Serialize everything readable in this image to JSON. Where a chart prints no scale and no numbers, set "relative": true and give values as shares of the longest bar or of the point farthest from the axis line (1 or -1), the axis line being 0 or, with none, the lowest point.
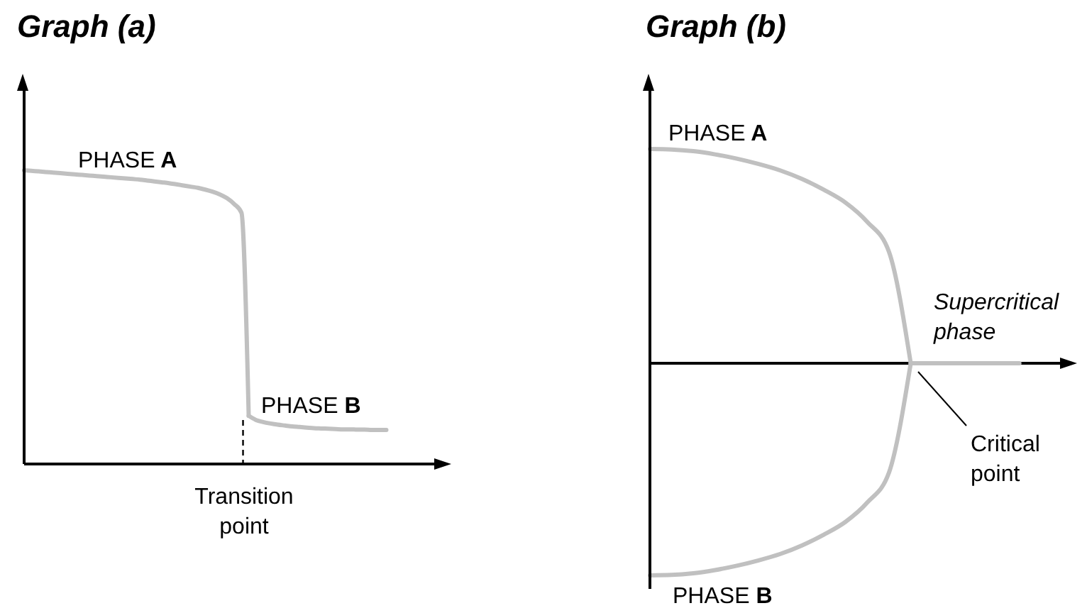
{
  "chart_data": [
    {
      "type": "line",
      "title": "Graph (a)",
      "relative": true,
      "categories": [
        null,
        null,
        null,
        null,
        null,
        null,
        null,
        null,
        null,
        null,
        null,
        null,
        null,
        null,
        null,
        null,
        null,
        null,
        null,
        null,
        null,
        null,
        null,
        null,
        null,
        null,
        null,
        null,
        null,
        null,
        null,
        null,
        null,
        null,
        null,
        null,
        null,
        null,
        null,
        null,
        null,
        null,
        null,
        null,
        null,
        null,
        null,
        null,
        null,
        null,
        null,
        null,
        null,
        null,
        null,
        null,
        null,
        null
      ],
      "series": [
        {
          "name": "PHASE A",
          "color": "#c0c0c0",
          "values": [
            1.0,
            0.998,
            0.996,
            0.994,
            0.992,
            0.99,
            0.988,
            0.986,
            0.984,
            0.982,
            0.98,
            0.978,
            0.976,
            0.974,
            0.972,
            0.97,
            0.968,
            0.965,
            0.962,
            0.959,
            0.956,
            0.952,
            0.948,
            0.944,
            0.94,
            0.934,
            0.927,
            0.918,
            0.905,
            0.885,
            0.855,
            0.164,
            null,
            null,
            null,
            null,
            null,
            null,
            null,
            null,
            null,
            null,
            null,
            null,
            null,
            null,
            null,
            null,
            null,
            null,
            null,
            null,
            null,
            null,
            null,
            null,
            null,
            null
          ]
        },
        {
          "name": "PHASE B",
          "color": "#c0c0c0",
          "values": [
            null,
            null,
            null,
            null,
            null,
            null,
            null,
            null,
            null,
            null,
            null,
            null,
            null,
            null,
            null,
            null,
            null,
            null,
            null,
            null,
            null,
            null,
            null,
            null,
            null,
            null,
            null,
            null,
            null,
            null,
            null,
            0.164,
            0.15,
            0.143,
            0.138,
            0.134,
            0.131,
            0.128,
            0.126,
            0.124,
            0.122,
            0.121,
            0.12,
            0.119,
            0.118,
            0.118,
            0.117,
            0.117,
            0.116,
            0.116,
            0.116,
            null,
            null,
            null,
            null,
            null,
            null,
            null
          ]
        }
      ],
      "annotations": [
        "Transition point"
      ]
    },
    {
      "type": "line",
      "title": "Graph (b)",
      "relative": true,
      "categories": [
        null,
        null,
        null,
        null,
        null,
        null,
        null,
        null,
        null,
        null,
        null,
        null,
        null,
        null,
        null,
        null,
        null,
        null,
        null,
        null
      ],
      "series": [
        {
          "name": "PHASE A",
          "color": "#c0c0c0",
          "values": [
            1.0,
            0.998,
            0.99,
            0.975,
            0.955,
            0.93,
            0.9,
            0.86,
            0.81,
            0.75,
            0.66,
            0.52,
            0,
            null,
            null,
            null,
            null,
            null,
            null,
            null
          ]
        },
        {
          "name": "PHASE B",
          "color": "#c0c0c0",
          "values": [
            -0.99,
            -0.988,
            -0.98,
            -0.965,
            -0.945,
            -0.92,
            -0.89,
            -0.85,
            -0.8,
            -0.74,
            -0.65,
            -0.51,
            0,
            null,
            null,
            null,
            null,
            null,
            null,
            null
          ]
        },
        {
          "color": "#c0c0c0",
          "values": [
            null,
            null,
            null,
            null,
            null,
            null,
            null,
            null,
            null,
            null,
            null,
            null,
            0,
            0,
            0,
            0,
            0,
            0,
            null,
            null
          ]
        }
      ],
      "annotations": [
        "Supercritical phase",
        "Critical point"
      ]
    }
  ]
}
